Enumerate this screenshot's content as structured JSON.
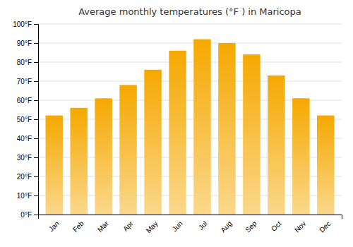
{
  "chart_data": {
    "type": "bar",
    "title": "Average monthly temperatures (°F ) in Maricopa",
    "categories": [
      "Jan",
      "Feb",
      "Mar",
      "Apr",
      "May",
      "Jun",
      "Jul",
      "Aug",
      "Sep",
      "Oct",
      "Nov",
      "Dec"
    ],
    "values": [
      52,
      56,
      61,
      68,
      76,
      86,
      92,
      90,
      84,
      73,
      61,
      52
    ],
    "color": "#F5A800",
    "ylim": [
      0,
      100
    ],
    "yticks": [
      {
        "value": 0,
        "label": "0°F"
      },
      {
        "value": 10,
        "label": "10°F"
      },
      {
        "value": 20,
        "label": "20°F"
      },
      {
        "value": 30,
        "label": "30°F"
      },
      {
        "value": 40,
        "label": "40°F"
      },
      {
        "value": 50,
        "label": "50°F"
      },
      {
        "value": 60,
        "label": "60°F"
      },
      {
        "value": 70,
        "label": "70°F"
      },
      {
        "value": 80,
        "label": "80°F"
      },
      {
        "value": 90,
        "label": "90°F"
      },
      {
        "value": 100,
        "label": "100°F"
      }
    ],
    "grid": true
  }
}
